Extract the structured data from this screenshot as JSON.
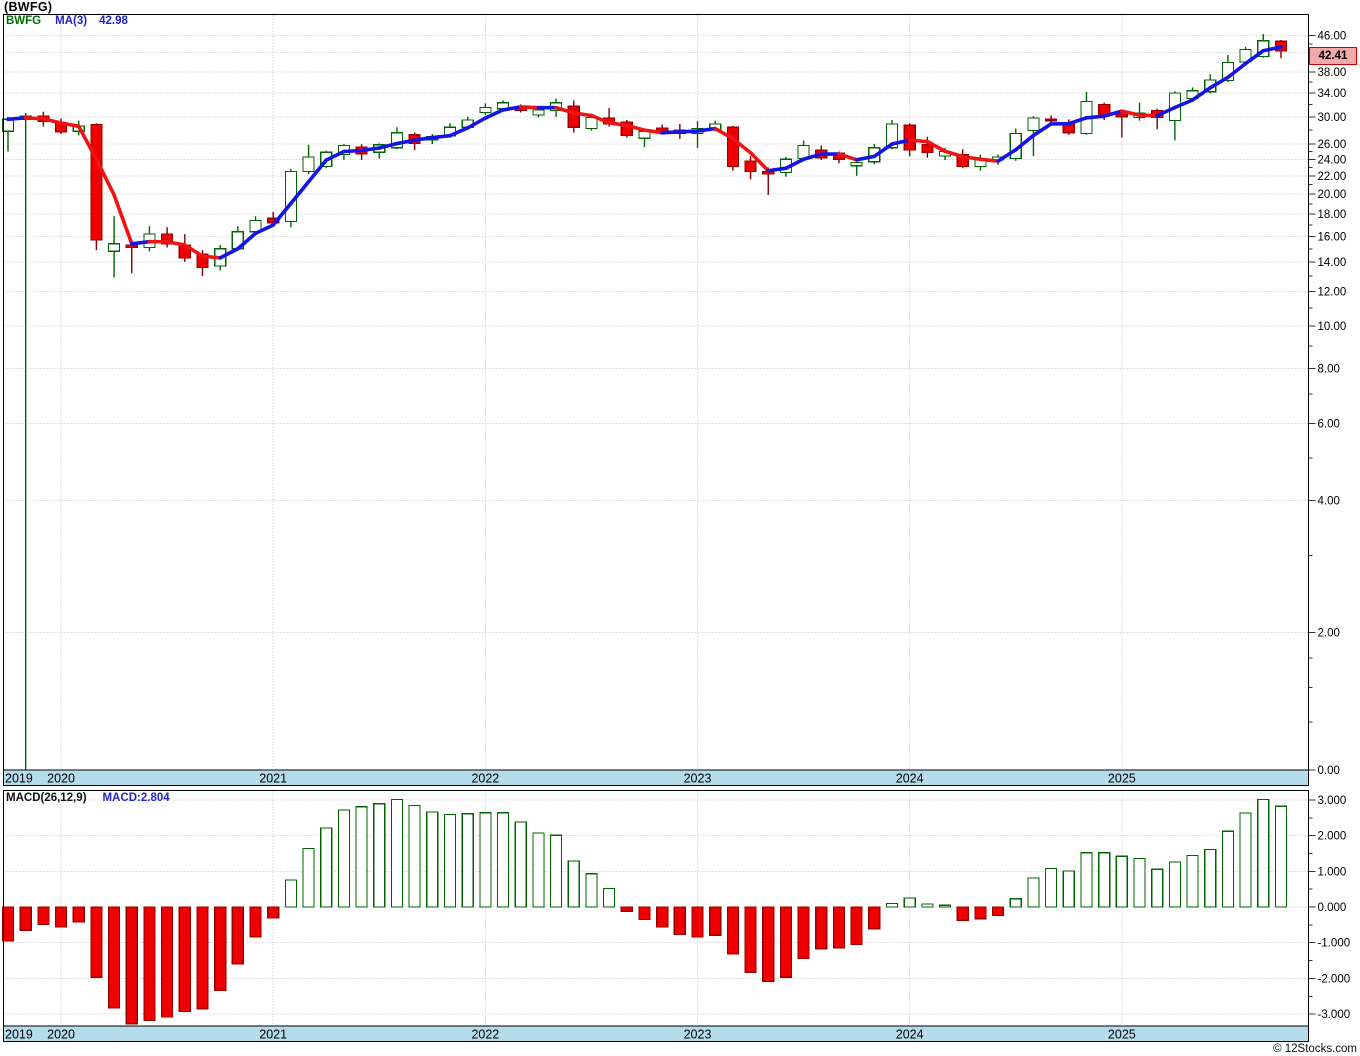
{
  "window": {
    "title": "(BWFG)"
  },
  "price_panel": {
    "legend": {
      "symbol": "BWFG",
      "ma_label": "MA(3)",
      "ma_value": "42.98"
    },
    "last_price_badge": "42.41"
  },
  "macd_panel": {
    "label": "MACD(26,12,9)",
    "value_label": "MACD:2.804"
  },
  "watermark": "© 12Stocks.com",
  "colors": {
    "candle_up_stroke": "#006400",
    "candle_up_fill": "#ffffff",
    "candle_down_fill": "#ee0000",
    "candle_down_stroke": "#990000",
    "candle_down_wick": "#7a0000",
    "ma_up": "#1414e6",
    "ma_down": "#ee1414",
    "grid": "#c0c0c0",
    "timeline_strip": "#b5dcea",
    "panel_border": "#000000",
    "badge_bg": "#f2a9a9",
    "badge_border": "#d00000",
    "legend_symbol": "#007000",
    "legend_blue": "#2323cc"
  },
  "chart_data": {
    "type": "candlestick_with_macd_histogram",
    "symbol": "BWFG",
    "frequency": "monthly",
    "first_month": "2019-10",
    "price_scale": "log",
    "last_close": 42.41,
    "ma_period": 3,
    "ma_last": 42.98,
    "macd_params": "26,12,9",
    "macd_last": 2.804,
    "candles_ohlc": [
      [
        27.8,
        30.0,
        25.0,
        29.6
      ],
      [
        29.6,
        30.6,
        0.97,
        30.1
      ],
      [
        30.1,
        30.8,
        28.5,
        29.3
      ],
      [
        29.1,
        29.7,
        27.4,
        27.7
      ],
      [
        27.8,
        29.4,
        27.2,
        28.6
      ],
      [
        28.8,
        29.0,
        14.9,
        15.7
      ],
      [
        14.8,
        17.8,
        12.9,
        15.4
      ],
      [
        15.3,
        15.6,
        13.2,
        15.1
      ],
      [
        15.1,
        16.9,
        14.8,
        16.2
      ],
      [
        16.2,
        16.8,
        15.1,
        15.4
      ],
      [
        15.3,
        16.2,
        14.0,
        14.3
      ],
      [
        14.6,
        14.9,
        13.0,
        13.6
      ],
      [
        13.7,
        15.3,
        13.4,
        15.0
      ],
      [
        15.0,
        16.9,
        14.9,
        16.4
      ],
      [
        16.4,
        17.8,
        16.2,
        17.4
      ],
      [
        17.6,
        18.2,
        16.9,
        17.2
      ],
      [
        17.3,
        22.8,
        16.8,
        22.5
      ],
      [
        22.5,
        25.9,
        22.2,
        24.3
      ],
      [
        23.1,
        25.1,
        22.9,
        24.9
      ],
      [
        24.6,
        26.0,
        23.9,
        25.8
      ],
      [
        25.6,
        26.0,
        23.9,
        24.7
      ],
      [
        24.9,
        26.1,
        24.1,
        25.9
      ],
      [
        25.5,
        28.4,
        25.3,
        27.6
      ],
      [
        27.3,
        27.6,
        25.2,
        26.1
      ],
      [
        26.6,
        27.4,
        26.0,
        27.0
      ],
      [
        27.1,
        29.0,
        26.9,
        28.4
      ],
      [
        28.4,
        30.0,
        28.2,
        29.5
      ],
      [
        30.7,
        32.2,
        30.3,
        31.5
      ],
      [
        31.3,
        32.7,
        31.0,
        32.3
      ],
      [
        31.6,
        32.0,
        30.7,
        31.0
      ],
      [
        30.3,
        31.4,
        29.9,
        31.1
      ],
      [
        31.0,
        33.0,
        30.0,
        32.3
      ],
      [
        31.7,
        32.7,
        27.6,
        28.4
      ],
      [
        28.2,
        30.3,
        27.9,
        29.9
      ],
      [
        29.8,
        31.4,
        28.5,
        28.9
      ],
      [
        29.2,
        29.5,
        26.9,
        27.2
      ],
      [
        26.8,
        28.0,
        25.6,
        27.8
      ],
      [
        28.3,
        28.8,
        27.3,
        27.8
      ],
      [
        28.0,
        28.9,
        26.7,
        27.5
      ],
      [
        27.5,
        29.3,
        25.5,
        28.2
      ],
      [
        28.0,
        29.4,
        27.8,
        28.9
      ],
      [
        28.4,
        28.6,
        22.6,
        23.1
      ],
      [
        23.8,
        24.4,
        21.6,
        22.5
      ],
      [
        22.5,
        23.0,
        19.9,
        22.2
      ],
      [
        22.4,
        24.3,
        21.9,
        24.0
      ],
      [
        24.1,
        26.5,
        23.8,
        25.8
      ],
      [
        25.2,
        25.8,
        23.9,
        24.2
      ],
      [
        24.8,
        25.0,
        23.5,
        24.0
      ],
      [
        23.2,
        24.1,
        22.0,
        23.6
      ],
      [
        23.7,
        26.0,
        23.4,
        25.5
      ],
      [
        25.5,
        29.5,
        25.3,
        28.9
      ],
      [
        28.7,
        29.0,
        24.4,
        25.2
      ],
      [
        25.9,
        27.0,
        24.2,
        24.9
      ],
      [
        24.4,
        25.5,
        23.9,
        25.0
      ],
      [
        24.6,
        25.3,
        22.9,
        23.1
      ],
      [
        23.1,
        24.6,
        22.6,
        23.9
      ],
      [
        23.9,
        24.6,
        23.3,
        24.3
      ],
      [
        24.1,
        28.2,
        23.8,
        27.5
      ],
      [
        27.9,
        30.1,
        24.4,
        29.8
      ],
      [
        29.6,
        30.2,
        28.9,
        29.4
      ],
      [
        29.0,
        29.6,
        27.3,
        27.6
      ],
      [
        27.5,
        34.2,
        27.3,
        32.5
      ],
      [
        32.0,
        32.3,
        29.5,
        30.2
      ],
      [
        30.8,
        31.0,
        26.9,
        30.0
      ],
      [
        29.9,
        32.3,
        29.4,
        30.6
      ],
      [
        31.0,
        31.3,
        28.1,
        29.9
      ],
      [
        29.4,
        34.3,
        26.5,
        34.0
      ],
      [
        33.0,
        35.0,
        32.4,
        34.4
      ],
      [
        34.2,
        37.5,
        33.9,
        36.4
      ],
      [
        36.3,
        41.5,
        36.0,
        39.9
      ],
      [
        40.0,
        43.3,
        39.6,
        42.7
      ],
      [
        41.2,
        46.3,
        40.9,
        44.7
      ],
      [
        44.6,
        44.9,
        40.8,
        42.41
      ]
    ],
    "macd_histogram": [
      -0.95,
      -0.65,
      -0.49,
      -0.56,
      -0.42,
      -1.97,
      -2.83,
      -3.27,
      -3.18,
      -3.08,
      -2.93,
      -2.85,
      -2.34,
      -1.6,
      -0.84,
      -0.31,
      0.76,
      1.64,
      2.21,
      2.72,
      2.81,
      2.89,
      3.01,
      2.84,
      2.66,
      2.59,
      2.61,
      2.64,
      2.64,
      2.38,
      2.07,
      2.01,
      1.29,
      0.93,
      0.52,
      -0.12,
      -0.35,
      -0.56,
      -0.77,
      -0.84,
      -0.79,
      -1.32,
      -1.83,
      -2.09,
      -1.97,
      -1.44,
      -1.17,
      -1.14,
      -1.05,
      -0.61,
      0.1,
      0.25,
      0.08,
      0.05,
      -0.37,
      -0.33,
      -0.24,
      0.23,
      0.81,
      1.08,
      1.01,
      1.52,
      1.52,
      1.42,
      1.36,
      1.06,
      1.26,
      1.44,
      1.61,
      2.12,
      2.63,
      3.01,
      2.82
    ],
    "price_axis": {
      "major_ticks": [
        46,
        42,
        38,
        34,
        30,
        26,
        24,
        22,
        20,
        18,
        16,
        14,
        12,
        10,
        8,
        6,
        4,
        2
      ],
      "minor_ticks": [
        44,
        40,
        36,
        32,
        28,
        25,
        23,
        21,
        19,
        17,
        15,
        13,
        11,
        9,
        7,
        5,
        3,
        1.75,
        1.5,
        1.25
      ],
      "bottom_label": "0.00"
    },
    "macd_axis": {
      "major_ticks": [
        3,
        2,
        1,
        0,
        -1,
        -2,
        -3
      ],
      "minor_ticks": [
        2.5,
        1.5,
        0.5,
        -0.5,
        -1.5,
        -2.5
      ]
    },
    "years": [
      {
        "label": "2019",
        "month_index": null
      },
      {
        "label": "2020",
        "month_index": 3
      },
      {
        "label": "2021",
        "month_index": 15
      },
      {
        "label": "2022",
        "month_index": 27
      },
      {
        "label": "2023",
        "month_index": 39
      },
      {
        "label": "2024",
        "month_index": 51
      },
      {
        "label": "2025",
        "month_index": 63
      }
    ]
  }
}
